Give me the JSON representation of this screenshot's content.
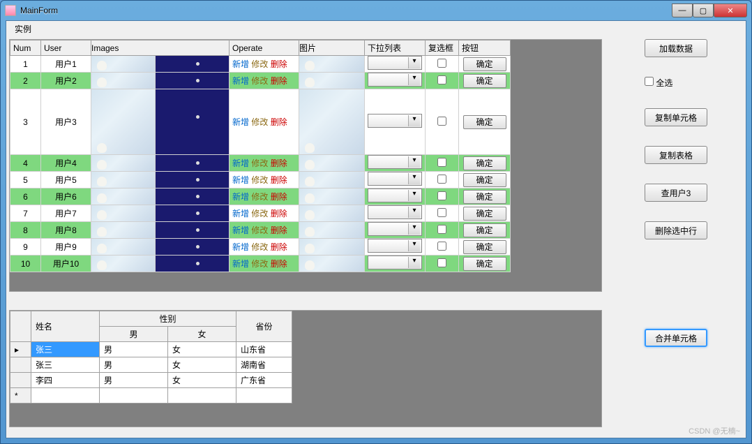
{
  "window": {
    "title": "MainForm"
  },
  "menu": {
    "item1": "实例"
  },
  "grid1": {
    "headers": {
      "num": "Num",
      "user": "User",
      "images": "Images",
      "operate": "Operate",
      "pic": "图片",
      "dropdown": "下拉列表",
      "checkbox": "复选框",
      "button": "按钮"
    },
    "op_labels": {
      "add": "新增",
      "edit": "修改",
      "del": "删除"
    },
    "row_button": "确定",
    "rows": [
      {
        "num": 1,
        "user": "用户1",
        "green": false,
        "tall": false
      },
      {
        "num": 2,
        "user": "用户2",
        "green": true,
        "tall": false
      },
      {
        "num": 3,
        "user": "用户3",
        "green": false,
        "tall": true
      },
      {
        "num": 4,
        "user": "用户4",
        "green": true,
        "tall": false
      },
      {
        "num": 5,
        "user": "用户5",
        "green": false,
        "tall": false
      },
      {
        "num": 6,
        "user": "用户6",
        "green": true,
        "tall": false
      },
      {
        "num": 7,
        "user": "用户7",
        "green": false,
        "tall": false
      },
      {
        "num": 8,
        "user": "用户8",
        "green": true,
        "tall": false
      },
      {
        "num": 9,
        "user": "用户9",
        "green": false,
        "tall": false
      },
      {
        "num": 10,
        "user": "用户10",
        "green": true,
        "tall": false
      }
    ]
  },
  "sidebar": {
    "load": "加载数据",
    "select_all": "全选",
    "copy_cell": "复制单元格",
    "copy_table": "复制表格",
    "find_user3": "查用户3",
    "delete_selected": "删除选中行",
    "merge_cells": "合并单元格"
  },
  "grid2": {
    "headers": {
      "name": "姓名",
      "gender": "性别",
      "male": "男",
      "female": "女",
      "province": "省份"
    },
    "rows": [
      {
        "name": "张三",
        "male": "男",
        "female": "女",
        "province": "山东省",
        "selected": true
      },
      {
        "name": "张三",
        "male": "男",
        "female": "女",
        "province": "湖南省",
        "selected": false
      },
      {
        "name": "李四",
        "male": "男",
        "female": "女",
        "province": "广东省",
        "selected": false
      }
    ]
  },
  "colors": {
    "row_highlight": "#7fd87f",
    "selection": "#3399ff",
    "link_add": "#0066cc",
    "link_edit": "#8b6914",
    "link_del": "#cc0000"
  },
  "watermark": "CSDN @无楠~"
}
